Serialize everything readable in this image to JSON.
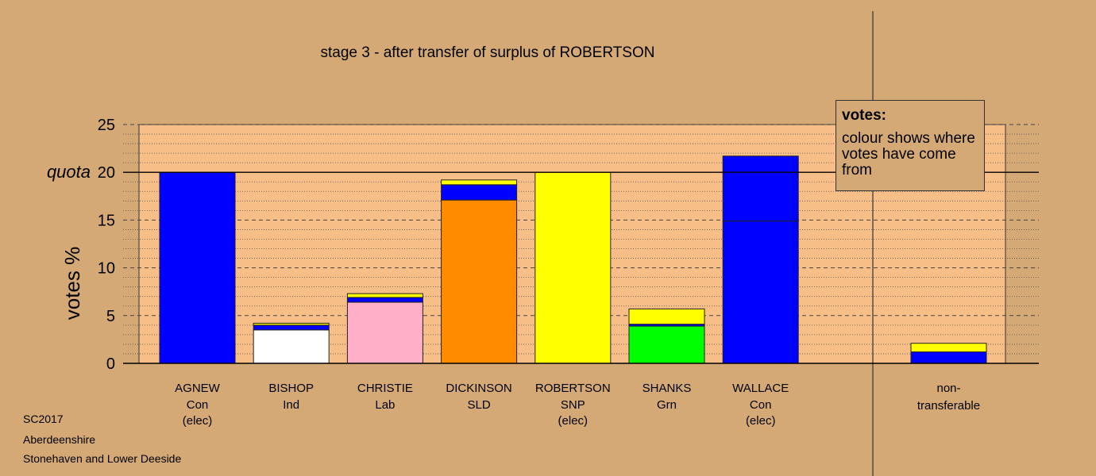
{
  "chart_data": {
    "type": "bar",
    "title": "stage 3 - after transfer of surplus of ROBERTSON",
    "ylabel": "votes %",
    "ylim": [
      0,
      25
    ],
    "yticks": [
      0,
      5,
      10,
      15,
      20,
      25
    ],
    "quota": {
      "label": "quota",
      "value": 20
    },
    "candidates": [
      {
        "name": "AGNEW",
        "party": "Con",
        "status": "(elec)",
        "segments": [
          {
            "value": 20.0,
            "color": "#0000FF"
          }
        ]
      },
      {
        "name": "BISHOP",
        "party": "Ind",
        "status": "",
        "segments": [
          {
            "value": 3.5,
            "color": "#FFFFFF"
          },
          {
            "value": 0.5,
            "color": "#0000FF"
          },
          {
            "value": 0.2,
            "color": "#FFFF00"
          }
        ]
      },
      {
        "name": "CHRISTIE",
        "party": "Lab",
        "status": "",
        "segments": [
          {
            "value": 6.4,
            "color": "#FFB0C8"
          },
          {
            "value": 0.5,
            "color": "#0000FF"
          },
          {
            "value": 0.4,
            "color": "#FFFF00"
          }
        ]
      },
      {
        "name": "DICKINSON",
        "party": "SLD",
        "status": "",
        "segments": [
          {
            "value": 17.1,
            "color": "#FF8C00"
          },
          {
            "value": 1.6,
            "color": "#0000FF"
          },
          {
            "value": 0.5,
            "color": "#FFFF00"
          }
        ]
      },
      {
        "name": "ROBERTSON",
        "party": "SNP",
        "status": "(elec)",
        "segments": [
          {
            "value": 20.0,
            "color": "#FFFF00"
          }
        ]
      },
      {
        "name": "SHANKS",
        "party": "Grn",
        "status": "",
        "segments": [
          {
            "value": 3.9,
            "color": "#00FF00"
          },
          {
            "value": 0.2,
            "color": "#0000FF"
          },
          {
            "value": 1.6,
            "color": "#FFFF00"
          }
        ]
      },
      {
        "name": "WALLACE",
        "party": "Con",
        "status": "(elec)",
        "segments": [
          {
            "value": 14.9,
            "color": "#0000FF"
          },
          {
            "value": 6.8,
            "color": "#0000FF"
          }
        ]
      }
    ],
    "nontransferable": {
      "label_line1": "non-",
      "label_line2": "transferable",
      "segments": [
        {
          "value": 1.2,
          "color": "#0000FF"
        },
        {
          "value": 0.9,
          "color": "#FFFF00"
        }
      ]
    }
  },
  "legend": {
    "title": "votes:",
    "text": "colour shows where votes have come from"
  },
  "footer": {
    "line1": "SC2017",
    "line2": "Aberdeenshire",
    "line3": "Stonehaven and Lower Deeside"
  },
  "colors": {
    "background": "#D4A976",
    "plot_background": "#F8BE87"
  }
}
